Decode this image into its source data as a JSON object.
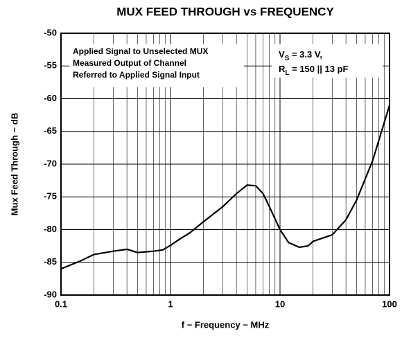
{
  "chart_data": {
    "type": "line",
    "title": "MUX FEED THROUGH vs FREQUENCY",
    "xlabel": "f − Frequency − MHz",
    "ylabel": "Mux Feed Through − dB",
    "xscale": "log",
    "xlim": [
      0.1,
      100
    ],
    "xticks": [
      0.1,
      1,
      10,
      100
    ],
    "xminorticks": [
      0.2,
      0.3,
      0.4,
      0.5,
      0.6,
      0.7,
      0.8,
      0.9,
      2,
      3,
      4,
      5,
      6,
      7,
      8,
      9,
      20,
      30,
      40,
      50,
      60,
      70,
      80,
      90
    ],
    "ylim": [
      -90,
      -50
    ],
    "yticks": [
      -50,
      -55,
      -60,
      -65,
      -70,
      -75,
      -80,
      -85,
      -90
    ],
    "grid": true,
    "annotations": [
      {
        "lines": [
          "Applied Signal to Unselected MUX",
          "Measured Output of Channel",
          "Referred to Applied Signal Input"
        ]
      },
      {
        "lines": [
          [
            "V",
            "S",
            " = 3.3 V,"
          ],
          [
            "R",
            "L",
            " = 150    || 13 pF"
          ]
        ]
      }
    ],
    "series": [
      {
        "color": "#000000",
        "x": [
          0.1,
          0.15,
          0.2,
          0.3,
          0.4,
          0.5,
          0.7,
          0.85,
          1,
          1.2,
          1.5,
          2,
          3,
          4,
          5,
          6,
          7,
          8,
          10,
          12,
          15,
          18,
          20,
          30,
          40,
          50,
          70,
          100
        ],
        "values": [
          -86,
          -84.8,
          -83.8,
          -83.3,
          -83,
          -83.5,
          -83.3,
          -83.1,
          -82.4,
          -81.5,
          -80.5,
          -78.8,
          -76.5,
          -74.5,
          -73.2,
          -73.3,
          -74.5,
          -76.5,
          -80,
          -82,
          -82.7,
          -82.5,
          -81.8,
          -80.8,
          -78.5,
          -75.5,
          -69.5,
          -61
        ]
      }
    ]
  }
}
